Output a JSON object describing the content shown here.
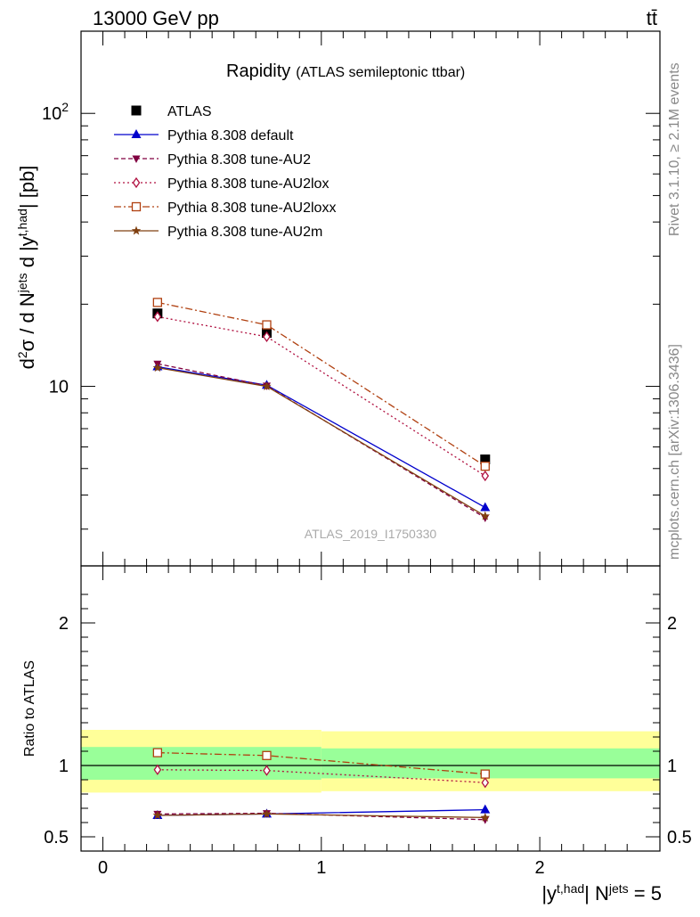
{
  "header": {
    "energy_label": "13000 GeV pp",
    "process_label": "tt̄"
  },
  "side_labels": {
    "rivet": "Rivet 3.1.10, ≥ 2.1M events",
    "mcplots": "mcplots.cern.ch [arXiv:1306.3436]"
  },
  "chart_data": [
    {
      "type": "line",
      "title": "Rapidity",
      "subtitle": "(ATLAS semileptonic ttbar)",
      "watermark": "ATLAS_2019_I1750330",
      "y_log": true,
      "ylim": [
        2.2,
        200
      ],
      "xlim": [
        -0.1,
        2.55
      ],
      "yticks": [
        {
          "value": 10,
          "label": "10",
          "sup": ""
        },
        {
          "value": 100,
          "label": "10",
          "sup": "2"
        }
      ],
      "legend_position": "top-left",
      "x": [
        0.25,
        0.75,
        1.75
      ],
      "series": [
        {
          "name": "ATLAS",
          "values": [
            18.5,
            15.7,
            5.4
          ],
          "color": "#000000",
          "marker": "square-filled",
          "dash": "none"
        },
        {
          "name": "Pythia 8.308 default",
          "values": [
            11.8,
            10.1,
            3.6
          ],
          "color": "#0000cc",
          "marker": "triangle-up",
          "dash": "solid"
        },
        {
          "name": "Pythia 8.308 tune-AU2",
          "values": [
            12.1,
            10.05,
            3.3
          ],
          "color": "#800040",
          "marker": "triangle-down",
          "dash": "dash"
        },
        {
          "name": "Pythia 8.308 tune-AU2lox",
          "values": [
            18.0,
            15.2,
            4.7
          ],
          "color": "#b01040",
          "marker": "diamond-open",
          "dash": "dot"
        },
        {
          "name": "Pythia 8.308 tune-AU2loxx",
          "values": [
            20.3,
            16.8,
            5.1
          ],
          "color": "#b04010",
          "marker": "square-open",
          "dash": "dashdot"
        },
        {
          "name": "Pythia 8.308 tune-AU2m",
          "values": [
            11.7,
            10.0,
            3.35
          ],
          "color": "#804010",
          "marker": "star",
          "dash": "solid"
        }
      ]
    },
    {
      "type": "line",
      "ylabel": "Ratio to ATLAS",
      "ylim": [
        0.4,
        2.4
      ],
      "xlim": [
        -0.1,
        2.55
      ],
      "yticks": [
        {
          "value": 0.5,
          "label": "0.5"
        },
        {
          "value": 1,
          "label": "1"
        },
        {
          "value": 2,
          "label": "2"
        }
      ],
      "xticks": [
        {
          "value": 0,
          "label": "0"
        },
        {
          "value": 1,
          "label": "1"
        },
        {
          "value": 2,
          "label": "2"
        }
      ],
      "x": [
        0.25,
        0.75,
        1.75
      ],
      "bands": [
        {
          "x_start": -0.1,
          "x_end": 1.0,
          "yellow": [
            0.81,
            1.25
          ],
          "green": [
            0.9,
            1.13
          ]
        },
        {
          "x_start": 1.0,
          "x_end": 2.55,
          "yellow": [
            0.82,
            1.24
          ],
          "green": [
            0.91,
            1.12
          ]
        }
      ],
      "series": [
        {
          "name": "Pythia 8.308 default",
          "values": [
            0.65,
            0.66,
            0.69
          ],
          "color": "#0000cc",
          "marker": "triangle-up",
          "dash": "solid"
        },
        {
          "name": "Pythia 8.308 tune-AU2",
          "values": [
            0.66,
            0.665,
            0.62
          ],
          "color": "#800040",
          "marker": "triangle-down",
          "dash": "dash"
        },
        {
          "name": "Pythia 8.308 tune-AU2lox",
          "values": [
            0.97,
            0.965,
            0.88
          ],
          "color": "#b01040",
          "marker": "diamond-open",
          "dash": "dot"
        },
        {
          "name": "Pythia 8.308 tune-AU2loxx",
          "values": [
            1.09,
            1.07,
            0.94
          ],
          "color": "#b04010",
          "marker": "square-open",
          "dash": "dashdot"
        },
        {
          "name": "Pythia 8.308 tune-AU2m",
          "values": [
            0.65,
            0.66,
            0.635
          ],
          "color": "#804010",
          "marker": "star",
          "dash": "solid"
        }
      ]
    }
  ]
}
